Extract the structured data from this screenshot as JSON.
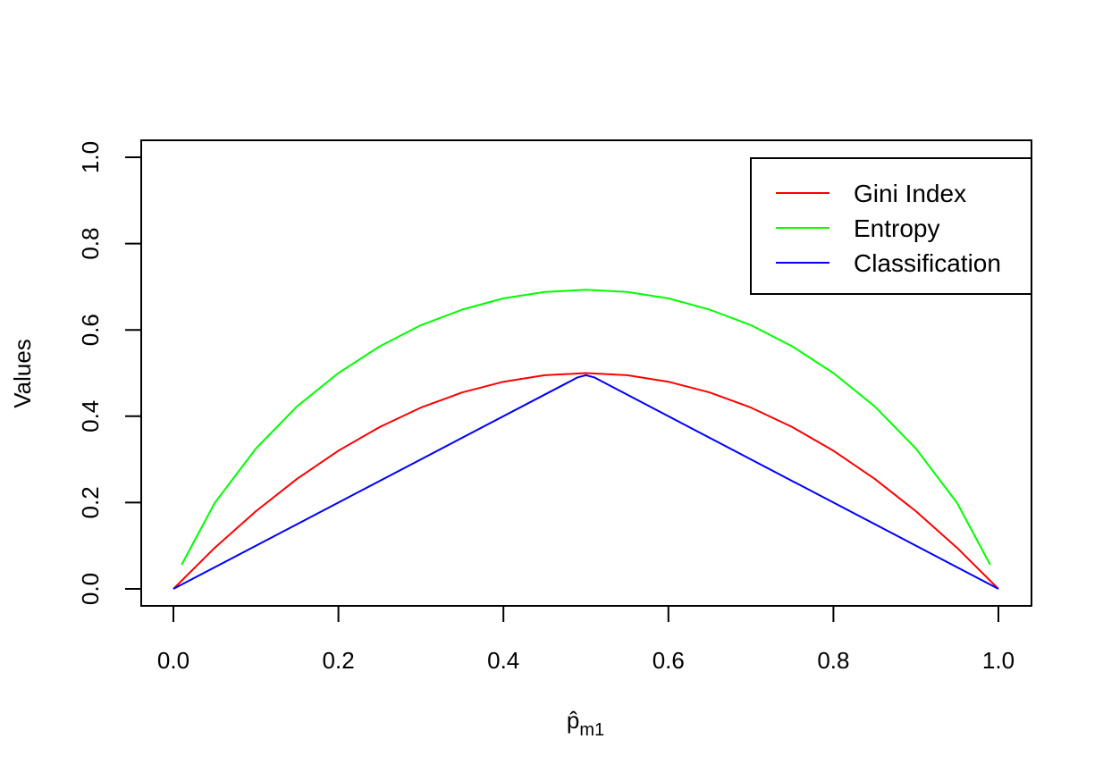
{
  "chart_data": {
    "type": "line",
    "title": "",
    "xlabel": "p̂",
    "xlabel_subscript": "m1",
    "ylabel": "Values",
    "xlim": [
      0,
      1
    ],
    "ylim": [
      0,
      1
    ],
    "x_ticks": [
      0.0,
      0.2,
      0.4,
      0.6,
      0.8,
      1.0
    ],
    "x_tick_labels": [
      "0.0",
      "0.2",
      "0.4",
      "0.6",
      "0.8",
      "1.0"
    ],
    "y_ticks": [
      0.0,
      0.2,
      0.4,
      0.6,
      0.8,
      1.0
    ],
    "y_tick_labels": [
      "0.0",
      "0.2",
      "0.4",
      "0.6",
      "0.8",
      "1.0"
    ],
    "grid": false,
    "legend_position": "top-right",
    "series": [
      {
        "name": "Gini Index",
        "color": "#ff0000",
        "x": [
          0.0,
          0.05,
          0.1,
          0.15,
          0.2,
          0.25,
          0.3,
          0.35,
          0.4,
          0.45,
          0.5,
          0.55,
          0.6,
          0.65,
          0.7,
          0.75,
          0.8,
          0.85,
          0.9,
          0.95,
          1.0
        ],
        "y": [
          0.0,
          0.095,
          0.18,
          0.255,
          0.32,
          0.375,
          0.42,
          0.455,
          0.48,
          0.495,
          0.5,
          0.495,
          0.48,
          0.455,
          0.42,
          0.375,
          0.32,
          0.255,
          0.18,
          0.095,
          0.0
        ]
      },
      {
        "name": "Entropy",
        "color": "#00ff00",
        "x": [
          0.01,
          0.05,
          0.1,
          0.15,
          0.2,
          0.25,
          0.3,
          0.35,
          0.4,
          0.45,
          0.5,
          0.55,
          0.6,
          0.65,
          0.7,
          0.75,
          0.8,
          0.85,
          0.9,
          0.95,
          0.99
        ],
        "y": [
          0.056,
          0.199,
          0.325,
          0.423,
          0.5,
          0.562,
          0.611,
          0.647,
          0.673,
          0.688,
          0.693,
          0.688,
          0.673,
          0.647,
          0.611,
          0.562,
          0.5,
          0.423,
          0.325,
          0.199,
          0.056
        ]
      },
      {
        "name": "Classification",
        "color": "#0000ff",
        "x": [
          0.0,
          0.49,
          0.5,
          0.51,
          1.0
        ],
        "y": [
          0.0,
          0.49,
          0.495,
          0.49,
          0.0
        ]
      }
    ]
  }
}
